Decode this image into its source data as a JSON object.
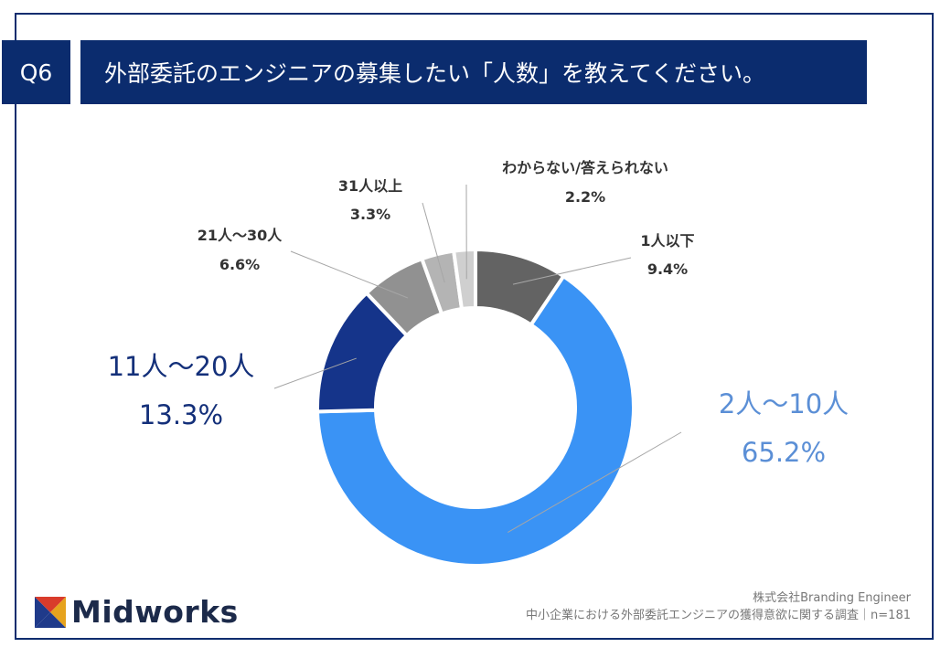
{
  "header": {
    "question_label": "Q6",
    "title": "外部委託のエンジニアの募集したい「人数」を教えてください。"
  },
  "chart_data": {
    "type": "pie",
    "donut": true,
    "categories": [
      "1人以下",
      "2人〜10人",
      "11人〜20人",
      "21人〜30人",
      "31人以上",
      "わからない/答えられない"
    ],
    "values": [
      9.4,
      65.2,
      13.3,
      6.6,
      3.3,
      2.2
    ],
    "value_labels": [
      "9.4%",
      "65.2%",
      "13.3%",
      "6.6%",
      "3.3%",
      "2.2%"
    ],
    "colors": [
      "#636363",
      "#3a93f5",
      "#15348a",
      "#919191",
      "#b4b4b4",
      "#cfcfcf"
    ],
    "title": "外部委託のエンジニアの募集したい「人数」を教えてください。"
  },
  "logo": {
    "text": "Midworks"
  },
  "footer": {
    "company": "株式会社Branding Engineer",
    "survey": "中小企業における外部委託エンジニアの獲得意欲に関する調査｜n=181"
  }
}
